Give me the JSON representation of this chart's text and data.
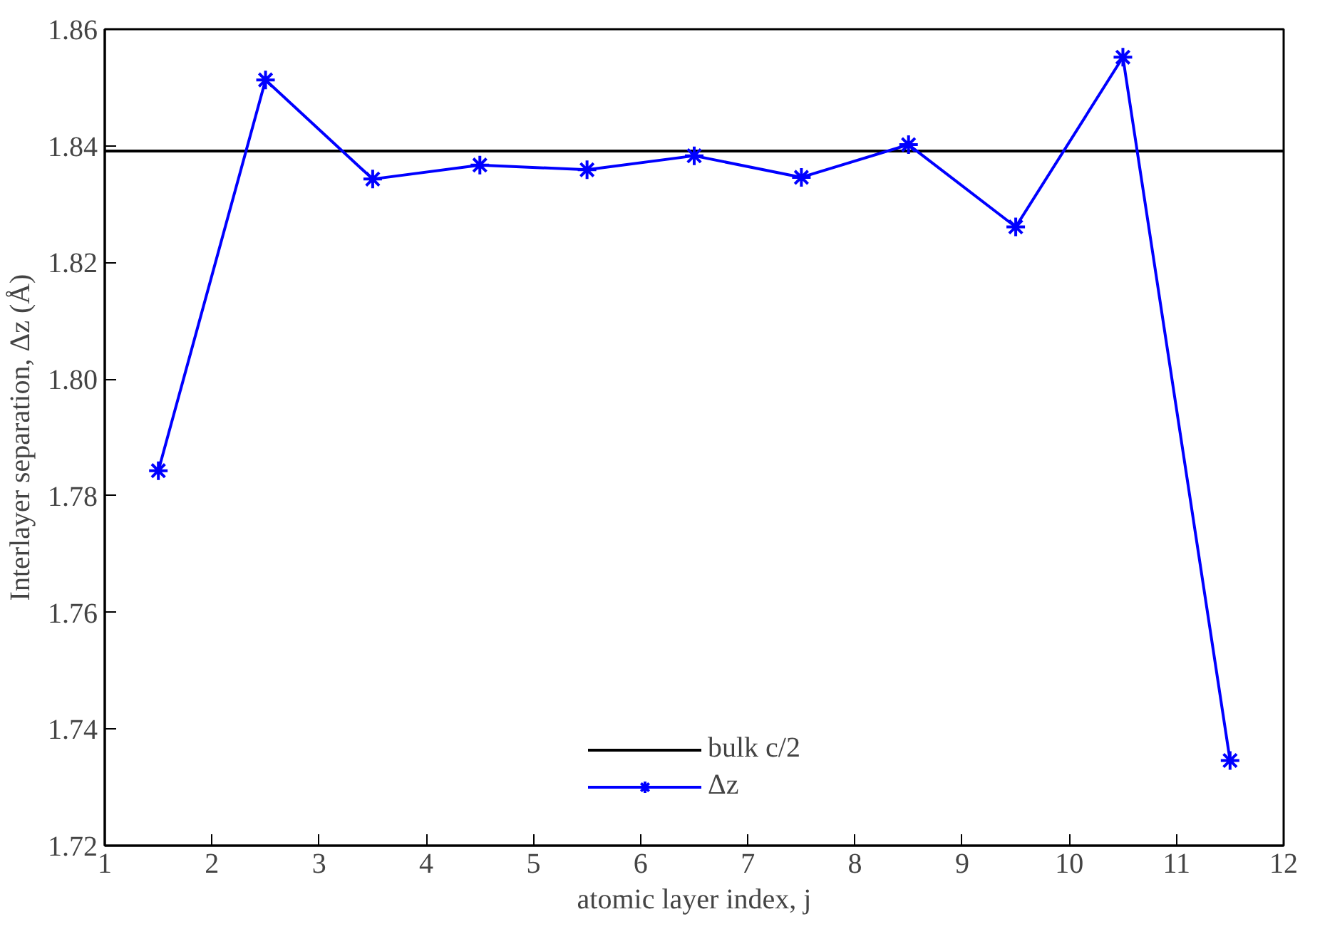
{
  "chart_data": {
    "type": "line",
    "xlabel": "atomic layer index, j",
    "ylabel": "Interlayer separation, Δz (Å)",
    "x": [
      1.5,
      2.5,
      3.5,
      4.5,
      5.5,
      6.5,
      7.5,
      8.5,
      9.5,
      10.5,
      11.5
    ],
    "series": [
      {
        "name": "Δz",
        "color": "#0000ff",
        "values": [
          1.7843,
          1.8513,
          1.8343,
          1.8367,
          1.8359,
          1.8383,
          1.8346,
          1.8402,
          1.8261,
          1.8552,
          1.7346
        ]
      }
    ],
    "ref_lines": [
      {
        "axis": "y",
        "value": 1.8391,
        "label": "bulk c/2",
        "color": "#000000",
        "line_style": "solid"
      }
    ],
    "xlim": [
      1,
      12
    ],
    "ylim": [
      1.72,
      1.86
    ],
    "xticks": [
      1,
      2,
      3,
      4,
      5,
      6,
      7,
      8,
      9,
      10,
      11,
      12
    ],
    "yticks": [
      {
        "value": 1.72,
        "label": "1.72"
      },
      {
        "value": 1.74,
        "label": "1.74"
      },
      {
        "value": 1.76,
        "label": "1.76"
      },
      {
        "value": 1.78,
        "label": "1.78"
      },
      {
        "value": 1.8,
        "label": "1.80"
      },
      {
        "value": 1.82,
        "label": "1.82"
      },
      {
        "value": 1.84,
        "label": "1.84"
      },
      {
        "value": 1.86,
        "label": "1.86"
      }
    ],
    "marker": "cross",
    "line_style": "solid",
    "grid": false,
    "legend": "bottom"
  }
}
